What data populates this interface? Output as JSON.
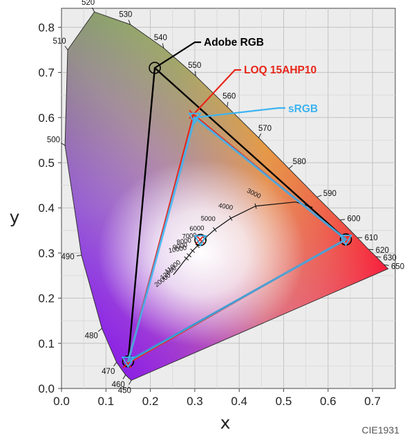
{
  "chart_data": {
    "type": "scatter",
    "title": "",
    "xlabel": "x",
    "ylabel": "y",
    "xlim": [
      0.0,
      0.75
    ],
    "ylim": [
      0.0,
      0.85
    ],
    "x_ticks": [
      "0.0",
      "0.1",
      "0.2",
      "0.3",
      "0.4",
      "0.5",
      "0.6",
      "0.7"
    ],
    "y_ticks": [
      "0.0",
      "0.1",
      "0.2",
      "0.3",
      "0.4",
      "0.5",
      "0.6",
      "0.7",
      "0.8"
    ],
    "grid": true,
    "credit": "CIE1931",
    "spectral_locus": [
      {
        "nm": "450",
        "x": 0.157,
        "y": 0.018
      },
      {
        "nm": "460",
        "x": 0.144,
        "y": 0.03
      },
      {
        "nm": "470",
        "x": 0.124,
        "y": 0.058
      },
      {
        "nm": "480",
        "x": 0.091,
        "y": 0.133
      },
      {
        "nm": "490",
        "x": 0.045,
        "y": 0.295
      },
      {
        "nm": "500",
        "x": 0.008,
        "y": 0.538
      },
      {
        "nm": "510",
        "x": 0.014,
        "y": 0.75
      },
      {
        "nm": "520",
        "x": 0.074,
        "y": 0.834
      },
      {
        "nm": "530",
        "x": 0.155,
        "y": 0.806
      },
      {
        "nm": "540",
        "x": 0.23,
        "y": 0.754
      },
      {
        "nm": "550",
        "x": 0.302,
        "y": 0.692
      },
      {
        "nm": "560",
        "x": 0.373,
        "y": 0.624
      },
      {
        "nm": "570",
        "x": 0.444,
        "y": 0.555
      },
      {
        "nm": "580",
        "x": 0.512,
        "y": 0.487
      },
      {
        "nm": "590",
        "x": 0.575,
        "y": 0.424
      },
      {
        "nm": "600",
        "x": 0.627,
        "y": 0.373
      },
      {
        "nm": "610",
        "x": 0.666,
        "y": 0.334
      },
      {
        "nm": "620",
        "x": 0.691,
        "y": 0.308
      },
      {
        "nm": "630",
        "x": 0.708,
        "y": 0.292
      },
      {
        "nm": "650",
        "x": 0.726,
        "y": 0.274
      }
    ],
    "locus_end": {
      "x": 0.735,
      "y": 0.265
    },
    "planckian_locus": [
      {
        "K": "10000",
        "x": 0.281,
        "y": 0.288
      },
      {
        "K": "9000",
        "x": 0.287,
        "y": 0.295
      },
      {
        "K": "8000",
        "x": 0.295,
        "y": 0.305
      },
      {
        "K": "7000",
        "x": 0.306,
        "y": 0.316
      },
      {
        "K": "6000",
        "x": 0.322,
        "y": 0.332
      },
      {
        "K": "5000",
        "x": 0.345,
        "y": 0.352
      },
      {
        "K": "4000",
        "x": 0.381,
        "y": 0.377
      },
      {
        "K": "3000",
        "x": 0.437,
        "y": 0.404
      },
      {
        "K": "",
        "x": 0.527,
        "y": 0.413
      },
      {
        "K": "",
        "x": 0.565,
        "y": 0.401
      }
    ],
    "planckian_extra_labels": [
      "11000",
      "12000",
      "20000"
    ],
    "planckian_tail": [
      {
        "x": 0.275,
        "y": 0.281
      },
      {
        "x": 0.265,
        "y": 0.268
      },
      {
        "x": 0.252,
        "y": 0.252
      }
    ],
    "gamuts": [
      {
        "name": "Adobe RGB",
        "color": "#000000",
        "points": [
          {
            "x": 0.64,
            "y": 0.33
          },
          {
            "x": 0.21,
            "y": 0.71
          },
          {
            "x": 0.15,
            "y": 0.06
          }
        ],
        "white": {
          "x": 0.3127,
          "y": 0.329
        }
      },
      {
        "name": "LOQ 15AHP10",
        "color": "#e8261a",
        "points": [
          {
            "x": 0.638,
            "y": 0.33
          },
          {
            "x": 0.297,
            "y": 0.607
          },
          {
            "x": 0.148,
            "y": 0.055
          }
        ],
        "white": {
          "x": 0.312,
          "y": 0.33
        }
      },
      {
        "name": "sRGB",
        "color": "#3bb4f2",
        "points": [
          {
            "x": 0.64,
            "y": 0.33
          },
          {
            "x": 0.3,
            "y": 0.6
          },
          {
            "x": 0.15,
            "y": 0.06
          }
        ],
        "white": {
          "x": 0.3127,
          "y": 0.329
        }
      }
    ]
  }
}
